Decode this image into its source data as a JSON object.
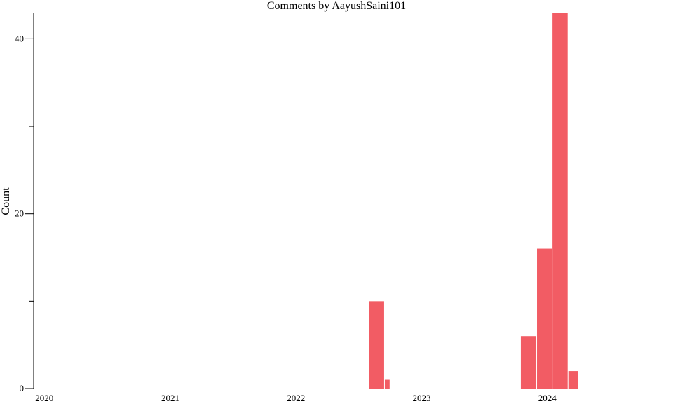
{
  "chart_data": {
    "type": "bar",
    "title": "Comments by AayushSaini101",
    "xlabel": "",
    "ylabel": "Count",
    "x_ticks": [
      "2020",
      "2021",
      "2022",
      "2023",
      "2024"
    ],
    "y_ticks": [
      0,
      20,
      40
    ],
    "y_minor_ticks": [
      10,
      30
    ],
    "ylim": [
      0,
      43
    ],
    "xlim": [
      "2019-12-01",
      "2024-12-31"
    ],
    "grid": false,
    "legend": "none",
    "bar_color": "#f25c64",
    "bars": [
      {
        "start": "2022-08-01",
        "end": "2022-09-15",
        "value": 10
      },
      {
        "start": "2022-09-15",
        "end": "2022-10-01",
        "value": 1
      },
      {
        "start": "2023-10-15",
        "end": "2023-12-01",
        "value": 6
      },
      {
        "start": "2023-12-01",
        "end": "2024-01-15",
        "value": 16
      },
      {
        "start": "2024-01-15",
        "end": "2024-03-01",
        "value": 43
      },
      {
        "start": "2024-03-01",
        "end": "2024-04-01",
        "value": 2
      }
    ]
  }
}
